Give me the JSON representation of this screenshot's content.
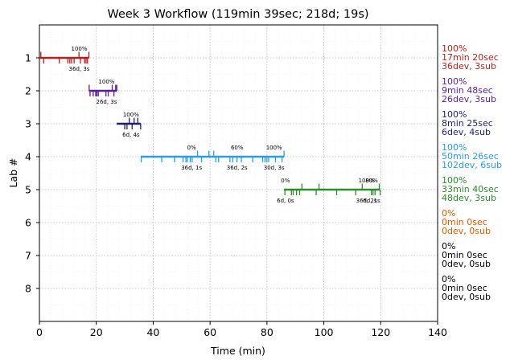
{
  "chart_data": {
    "type": "timeline",
    "title": "Week 3 Workflow (119min 39sec; 218d; 19s)",
    "xlabel": "Time (min)",
    "ylabel": "Lab #",
    "xlim": [
      0,
      140
    ],
    "ylim": [
      9,
      0
    ],
    "xticks": [
      "0",
      "20",
      "40",
      "60",
      "80",
      "100",
      "120",
      "140"
    ],
    "yticks": [
      "1",
      "2",
      "3",
      "4",
      "5",
      "6",
      "7",
      "8"
    ],
    "grid": true,
    "labs": [
      {
        "lab": 1,
        "color": "#b22222",
        "start": 0,
        "end": 17.4,
        "events": [
          [
            0.5,
            1
          ],
          [
            1.5,
            -1
          ],
          [
            7,
            -1
          ],
          [
            10,
            -1
          ],
          [
            10.7,
            -1
          ],
          [
            11.3,
            -1
          ],
          [
            12.2,
            -1
          ],
          [
            13.9,
            1
          ],
          [
            14.4,
            -1
          ],
          [
            15.9,
            -1
          ],
          [
            16.4,
            -1
          ],
          [
            16.9,
            -1
          ],
          [
            17.4,
            1
          ]
        ],
        "annotations": [
          {
            "x": 14,
            "top": "100%",
            "bottom": "36d, 3s"
          }
        ],
        "summary": [
          "100%",
          "17min 20sec",
          "36dev, 3sub"
        ]
      },
      {
        "lab": 2,
        "color": "#5b1f91",
        "start": 17.4,
        "end": 27.2,
        "events": [
          [
            17.5,
            1
          ],
          [
            17.8,
            -1
          ],
          [
            18.9,
            -1
          ],
          [
            19.8,
            -1
          ],
          [
            20.2,
            -1
          ],
          [
            20.7,
            -1
          ],
          [
            23.4,
            -1
          ],
          [
            24.2,
            -1
          ],
          [
            25.6,
            1
          ],
          [
            26.2,
            -1
          ],
          [
            26.8,
            1
          ],
          [
            27.2,
            1
          ]
        ],
        "annotations": [
          {
            "x": 23.6,
            "top": "100%",
            "bottom": "26d, 3s"
          }
        ],
        "summary": [
          "100%",
          "9min 48sec",
          "26dev, 3sub"
        ]
      },
      {
        "lab": 3,
        "color": "#1c1f6b",
        "start": 27.2,
        "end": 35.6,
        "events": [
          [
            30,
            -1
          ],
          [
            30.8,
            -1
          ],
          [
            31.6,
            1
          ],
          [
            32.6,
            -1
          ],
          [
            33.3,
            1
          ],
          [
            34.6,
            1
          ],
          [
            35.6,
            -1
          ]
        ],
        "annotations": [
          {
            "x": 32.2,
            "top": "100%",
            "bottom": "6d, 4s"
          }
        ],
        "summary": [
          "100%",
          "8min 25sec",
          "6dev, 4sub"
        ]
      },
      {
        "lab": 4,
        "color": "#2b9de0",
        "start": 35.6,
        "end": 86.0,
        "events": [
          [
            35.8,
            -1
          ],
          [
            43,
            -1
          ],
          [
            47.5,
            -1
          ],
          [
            50.5,
            -1
          ],
          [
            51.5,
            -1
          ],
          [
            52,
            -1
          ],
          [
            53,
            -1
          ],
          [
            53.7,
            -1
          ],
          [
            55.6,
            1
          ],
          [
            57,
            -1
          ],
          [
            59.6,
            1
          ],
          [
            61.3,
            1
          ],
          [
            62,
            -1
          ],
          [
            63,
            -1
          ],
          [
            67,
            -1
          ],
          [
            68,
            -1
          ],
          [
            69.5,
            -1
          ],
          [
            71,
            -1
          ],
          [
            75,
            -1
          ],
          [
            78.5,
            -1
          ],
          [
            79.3,
            -1
          ],
          [
            80,
            -1
          ],
          [
            80.6,
            -1
          ],
          [
            83,
            -1
          ],
          [
            85.3,
            -1
          ],
          [
            86,
            1
          ]
        ],
        "annotations": [
          {
            "x": 53.5,
            "top": "0%",
            "bottom": "36d, 1s"
          },
          {
            "x": 69.5,
            "top": "60%",
            "bottom": "36d, 2s"
          },
          {
            "x": 82.5,
            "top": "100%",
            "bottom": "30d, 3s"
          }
        ],
        "summary": [
          "100%",
          "50min 26sec",
          "102dev, 6sub"
        ]
      },
      {
        "lab": 5,
        "color": "#2e8b2e",
        "start": 86.0,
        "end": 119.65,
        "events": [
          [
            86.3,
            -1
          ],
          [
            88.6,
            -1
          ],
          [
            89.2,
            -1
          ],
          [
            90.4,
            -1
          ],
          [
            91.5,
            -1
          ],
          [
            92.3,
            1
          ],
          [
            97.3,
            -1
          ],
          [
            98.3,
            1
          ],
          [
            104.5,
            -1
          ],
          [
            111.2,
            -1
          ],
          [
            113.5,
            1
          ],
          [
            116.7,
            -1
          ],
          [
            117.3,
            -1
          ],
          [
            118,
            -1
          ],
          [
            119.5,
            1
          ],
          [
            119.8,
            -1
          ]
        ],
        "annotations": [
          {
            "x": 86.5,
            "top": "0%",
            "bottom": "6d, 0s"
          },
          {
            "x": 115,
            "top": "100%",
            "bottom": "36d, 2s"
          },
          {
            "x": 116.8,
            "top": "80%",
            "bottom": "6d, 1s"
          }
        ],
        "summary": [
          "100%",
          "33min 40sec",
          "48dev, 3sub"
        ]
      },
      {
        "lab": 6,
        "color": "#e05a00",
        "start": null,
        "end": null,
        "events": [],
        "annotations": [],
        "summary": [
          "0%",
          "0min 0sec",
          "0dev, 0sub"
        ]
      },
      {
        "lab": 7,
        "color": "#000000",
        "start": null,
        "end": null,
        "events": [],
        "annotations": [],
        "summary": [
          "0%",
          "0min 0sec",
          "0dev, 0sub"
        ]
      },
      {
        "lab": 8,
        "color": "#000000",
        "start": null,
        "end": null,
        "events": [],
        "annotations": [],
        "summary": [
          "0%",
          "0min 0sec",
          "0dev, 0sub"
        ]
      }
    ]
  }
}
